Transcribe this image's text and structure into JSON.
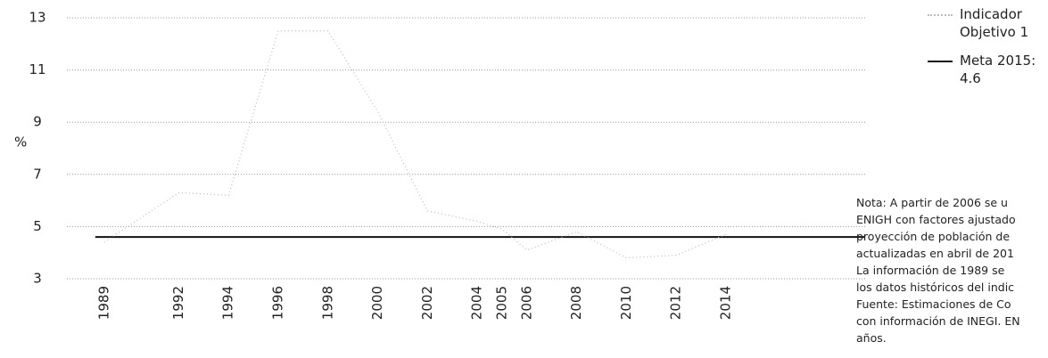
{
  "chart_data": {
    "type": "line",
    "y_label": "%",
    "x": [
      1989,
      1992,
      1994,
      1996,
      1998,
      2000,
      2002,
      2004,
      2005,
      2006,
      2008,
      2010,
      2012,
      2014
    ],
    "series": [
      {
        "name": "Indicador Objetivo 1",
        "color": "#bbbbbb",
        "values": [
          4.4,
          6.3,
          6.2,
          12.5,
          12.5,
          9.4,
          5.6,
          5.2,
          4.9,
          4.1,
          4.8,
          3.8,
          3.9,
          4.7
        ]
      }
    ],
    "meta": {
      "name": "Meta 2015:",
      "value_label": "4.6",
      "value": 4.6,
      "color": "#111111"
    },
    "xlim": [
      1987.5,
      2019.6
    ],
    "xticks": [
      1989,
      1992,
      1994,
      1996,
      1998,
      2000,
      2002,
      2004,
      2005,
      2006,
      2008,
      2010,
      2012,
      2014
    ],
    "ylim": [
      3,
      13
    ],
    "yticks": [
      3,
      5,
      7,
      9,
      11,
      13
    ],
    "grid": true,
    "note": [
      "Nota: A partir de 2006 se u",
      "ENIGH con factores ajustado",
      "proyección de población de",
      "actualizadas en abril de 201",
      "La información de 1989 se",
      "los datos históricos del indic",
      "Fuente: Estimaciones de Co",
      "con información de INEGI. EN",
      "años."
    ]
  }
}
